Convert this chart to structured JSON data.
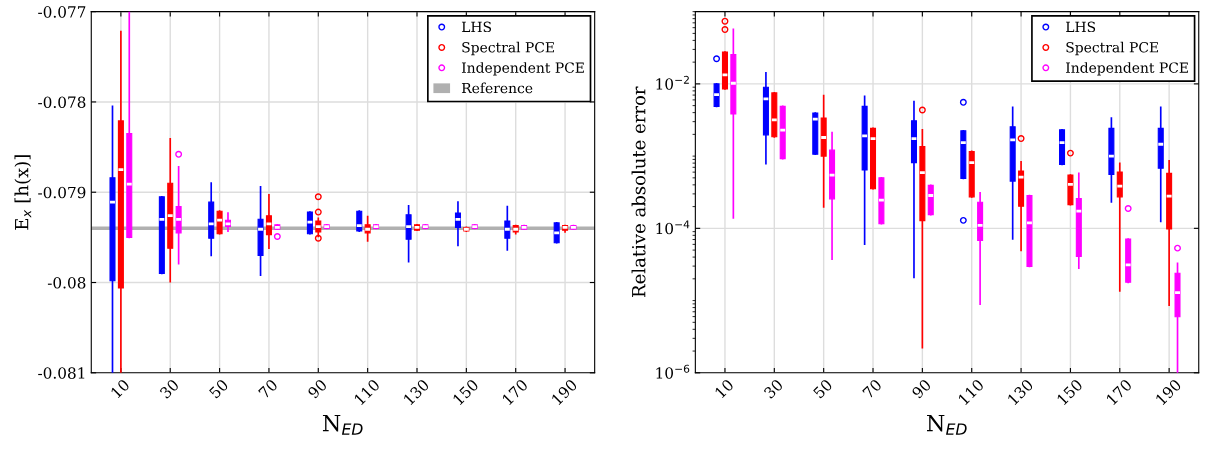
{
  "chart_data": [
    {
      "type": "box",
      "categories": [
        "10",
        "30",
        "50",
        "70",
        "90",
        "110",
        "130",
        "150",
        "170",
        "190"
      ],
      "xlabel": "N$_{ED}$",
      "ylabel": "E$_{x}$ [h(x)]",
      "ylim": [
        -0.081,
        -0.077
      ],
      "yticks": [
        -0.081,
        -0.08,
        -0.079,
        -0.078,
        -0.077
      ],
      "grid": true,
      "legend": "top right",
      "marker": "circle",
      "ref_lines": [
        {
          "axis": "y",
          "value": -0.0794,
          "label": "Reference",
          "color": "#b0b0b0"
        }
      ],
      "series": [
        {
          "name": "LHS",
          "color": "#0000ff",
          "boxes": [
            {
              "low": -0.081,
              "q1": -0.07998,
              "median": -0.07911,
              "q3": -0.07884,
              "high": -0.07805
            },
            {
              "low": -0.0799,
              "q1": -0.0799,
              "median": -0.0793,
              "q3": -0.07905,
              "high": -0.07905
            },
            {
              "low": -0.0797,
              "q1": -0.07951,
              "median": -0.07935,
              "q3": -0.07911,
              "high": -0.0789
            },
            {
              "low": -0.07992,
              "q1": -0.0797,
              "median": -0.07941,
              "q3": -0.0793,
              "high": -0.07894
            },
            {
              "low": -0.07946,
              "q1": -0.07946,
              "median": -0.07933,
              "q3": -0.07922,
              "high": -0.07922
            },
            {
              "low": -0.07943,
              "q1": -0.07943,
              "median": -0.07937,
              "q3": -0.07921,
              "high": -0.07921
            },
            {
              "low": -0.07977,
              "q1": -0.07952,
              "median": -0.07938,
              "q3": -0.07925,
              "high": -0.07915
            },
            {
              "low": -0.07959,
              "q1": -0.07939,
              "median": -0.0793,
              "q3": -0.07923,
              "high": -0.07911
            },
            {
              "low": -0.07964,
              "q1": -0.07951,
              "median": -0.07941,
              "q3": -0.07932,
              "high": -0.07916
            },
            {
              "low": -0.07956,
              "q1": -0.07956,
              "median": -0.07945,
              "q3": -0.07934,
              "high": -0.07934
            }
          ]
        },
        {
          "name": "Spectral PCE",
          "color": "#ff0000",
          "boxes": [
            {
              "low": -0.081,
              "q1": -0.08006,
              "median": -0.07875,
              "q3": -0.07821,
              "high": -0.07722
            },
            {
              "low": -0.07999,
              "q1": -0.07962,
              "median": -0.07926,
              "q3": -0.0789,
              "high": -0.07841
            },
            {
              "low": -0.07946,
              "q1": -0.07946,
              "median": -0.07931,
              "q3": -0.07921,
              "high": -0.07921
            },
            {
              "low": -0.07962,
              "q1": -0.07947,
              "median": -0.07935,
              "q3": -0.07926,
              "high": -0.07903
            },
            {
              "low": -0.07949,
              "q1": -0.07944,
              "median": -0.07938,
              "q3": -0.07932,
              "high": -0.07929,
              "outliers": [
                -0.07905,
                -0.07922,
                -0.07951
              ]
            },
            {
              "low": -0.07954,
              "q1": -0.07945,
              "median": -0.07941,
              "q3": -0.07936,
              "high": -0.07927
            },
            {
              "low": -0.07942,
              "q1": -0.07942,
              "median": -0.07939,
              "q3": -0.07936,
              "high": -0.07936
            },
            {
              "low": -0.07943,
              "q1": -0.07943,
              "median": -0.07941,
              "q3": -0.07939,
              "high": -0.07939
            },
            {
              "low": -0.07946,
              "q1": -0.07944,
              "median": -0.07941,
              "q3": -0.07937,
              "high": -0.07937
            },
            {
              "low": -0.07944,
              "q1": -0.07942,
              "median": -0.07939,
              "q3": -0.07937,
              "high": -0.07937
            }
          ]
        },
        {
          "name": "Independent PCE",
          "color": "#ff00ff",
          "boxes": [
            {
              "low": -0.0795,
              "q1": -0.0795,
              "median": -0.07891,
              "q3": -0.07835,
              "high": -0.077
            },
            {
              "low": -0.07979,
              "q1": -0.07945,
              "median": -0.0793,
              "q3": -0.07916,
              "high": -0.07872,
              "outliers": [
                -0.07858
              ]
            },
            {
              "low": -0.07943,
              "q1": -0.07938,
              "median": -0.07935,
              "q3": -0.07931,
              "high": -0.07923
            },
            {
              "low": -0.07941,
              "q1": -0.07941,
              "median": -0.07939,
              "q3": -0.07936,
              "high": -0.07936,
              "outliers": [
                -0.07949
              ]
            },
            {
              "low": -0.0794,
              "q1": -0.0794,
              "median": -0.07938,
              "q3": -0.07936,
              "high": -0.07936
            },
            {
              "low": -0.0794,
              "q1": -0.0794,
              "median": -0.07938,
              "q3": -0.07936,
              "high": -0.07936
            },
            {
              "low": -0.0794,
              "q1": -0.0794,
              "median": -0.07938,
              "q3": -0.07936,
              "high": -0.07936
            },
            {
              "low": -0.0794,
              "q1": -0.0794,
              "median": -0.07938,
              "q3": -0.07936,
              "high": -0.07936
            },
            {
              "low": -0.07941,
              "q1": -0.07941,
              "median": -0.07939,
              "q3": -0.07937,
              "high": -0.07937
            },
            {
              "low": -0.07941,
              "q1": -0.07941,
              "median": -0.07939,
              "q3": -0.07937,
              "high": -0.07937
            }
          ]
        }
      ]
    },
    {
      "type": "box",
      "categories": [
        "10",
        "30",
        "50",
        "70",
        "90",
        "110",
        "130",
        "150",
        "170",
        "190"
      ],
      "xlabel": "N$_{ED}$",
      "ylabel": "Relative absolute error",
      "log": true,
      "ylim": [
        1e-06,
        0.1
      ],
      "yticks": [
        {
          "value": 1e-06,
          "label": "10$^{−6}$"
        },
        {
          "value": 0.0001,
          "label": "10$^{−4}$"
        },
        {
          "value": 0.01,
          "label": "10$^{−2}$"
        }
      ],
      "grid": true,
      "legend": "top right",
      "marker": "circle",
      "series": [
        {
          "name": "LHS",
          "color": "#0000ff",
          "boxes": [
            {
              "low": 0.00489,
              "q1": 0.00489,
              "median": 0.00711,
              "q3": 0.01,
              "high": 0.01,
              "outliers": [
                0.0223
              ]
            },
            {
              "low": 0.000787,
              "q1": 0.00197,
              "median": 0.00618,
              "q3": 0.009,
              "high": 0.0142
            },
            {
              "low": 0.00106,
              "q1": 0.00106,
              "median": 0.00326,
              "q3": 0.00394,
              "high": 0.00394
            },
            {
              "low": 6.05e-05,
              "q1": 0.000641,
              "median": 0.00191,
              "q3": 0.00489,
              "high": 0.00673
            },
            {
              "low": 2.1e-05,
              "q1": 0.000813,
              "median": 0.00175,
              "q3": 0.00309,
              "high": 0.00568
            },
            {
              "low": 0.000491,
              "q1": 0.000491,
              "median": 0.00154,
              "q3": 0.00224,
              "high": 0.00224,
              "outliers": [
                0.00556,
                0.000129
              ]
            },
            {
              "low": 7.11e-05,
              "q1": 0.000451,
              "median": 0.00168,
              "q3": 0.00255,
              "high": 0.00473
            },
            {
              "low": 0.000769,
              "q1": 0.000769,
              "median": 0.00154,
              "q3": 0.00231,
              "high": 0.00231
            },
            {
              "low": 0.000233,
              "q1": 0.000558,
              "median": 0.001,
              "q3": 0.00242,
              "high": 0.00337
            },
            {
              "low": 0.000125,
              "q1": 0.000678,
              "median": 0.00146,
              "q3": 0.00242,
              "high": 0.00473
            }
          ]
        },
        {
          "name": "Spectral PCE",
          "color": "#ff0000",
          "boxes": [
            {
              "low": 0.00851,
              "q1": 0.00851,
              "median": 0.0133,
              "q3": 0.0276,
              "high": 0.0276,
              "outliers": [
                0.0565,
                0.0738
              ]
            },
            {
              "low": 0.00185,
              "q1": 0.00185,
              "median": 0.00318,
              "q3": 0.0075,
              "high": 0.0075
            },
            {
              "low": 0.000198,
              "q1": 0.001,
              "median": 0.00181,
              "q3": 0.00337,
              "high": 0.00689
            },
            {
              "low": 0.000353,
              "q1": 0.000353,
              "median": 0.00175,
              "q3": 0.00242,
              "high": 0.00242
            },
            {
              "low": 2.23e-06,
              "q1": 0.000128,
              "median": 0.000589,
              "q3": 0.00136,
              "high": 0.00231,
              "outliers": [
                0.00435
              ]
            },
            {
              "low": 0.000273,
              "q1": 0.000273,
              "median": 0.000813,
              "q3": 0.00116,
              "high": 0.00116
            },
            {
              "low": 4.94e-05,
              "q1": 0.000202,
              "median": 0.000513,
              "q3": 0.000622,
              "high": 0.00083,
              "outliers": [
                0.00175
              ]
            },
            {
              "low": 0.000213,
              "q1": 0.000213,
              "median": 0.000406,
              "q3": 0.000547,
              "high": 0.000547,
              "outliers": [
                0.0011
              ]
            },
            {
              "low": 1.36e-05,
              "q1": 0.000273,
              "median": 0.000385,
              "q3": 0.000603,
              "high": 0.000794
            },
            {
              "low": 8.65e-06,
              "q1": 9.79e-05,
              "median": 0.000279,
              "q3": 0.000577,
              "high": 0.000857
            }
          ]
        },
        {
          "name": "Independent PCE",
          "color": "#ff00ff",
          "boxes": [
            {
              "low": 0.000139,
              "q1": 0.00382,
              "median": 0.0102,
              "q3": 0.0254,
              "high": 0.057
            },
            {
              "low": 0.000923,
              "q1": 0.000923,
              "median": 0.00229,
              "q3": 0.00489,
              "high": 0.00489
            },
            {
              "low": 3.74e-05,
              "q1": 0.000256,
              "median": 0.000547,
              "q3": 0.00121,
              "high": 0.00212
            },
            {
              "low": 0.000116,
              "q1": 0.000116,
              "median": 0.000245,
              "q3": 0.000502,
              "high": 0.000502
            },
            {
              "low": 0.000155,
              "q1": 0.000155,
              "median": 0.000285,
              "q3": 0.000393,
              "high": 0.000393
            },
            {
              "low": 8.93e-06,
              "q1": 6.82e-05,
              "median": 0.00011,
              "q3": 0.00023,
              "high": 0.00031
            },
            {
              "low": 2.96e-05,
              "q1": 2.96e-05,
              "median": 0.000119,
              "q3": 0.000285,
              "high": 0.000285
            },
            {
              "low": 2.81e-05,
              "q1": 4.07e-05,
              "median": 0.000173,
              "q3": 0.000259,
              "high": 0.000577
            },
            {
              "low": 1.79e-05,
              "q1": 1.79e-05,
              "median": 3.12e-05,
              "q3": 7.11e-05,
              "high": 7.11e-05,
              "outliers": [
                0.000188
              ]
            },
            {
              "low": 1e-06,
              "q1": 5.96e-06,
              "median": 1.29e-05,
              "q3": 2.39e-05,
              "high": 3.29e-05,
              "outliers": [
                5.32e-05
              ]
            }
          ]
        }
      ]
    }
  ]
}
